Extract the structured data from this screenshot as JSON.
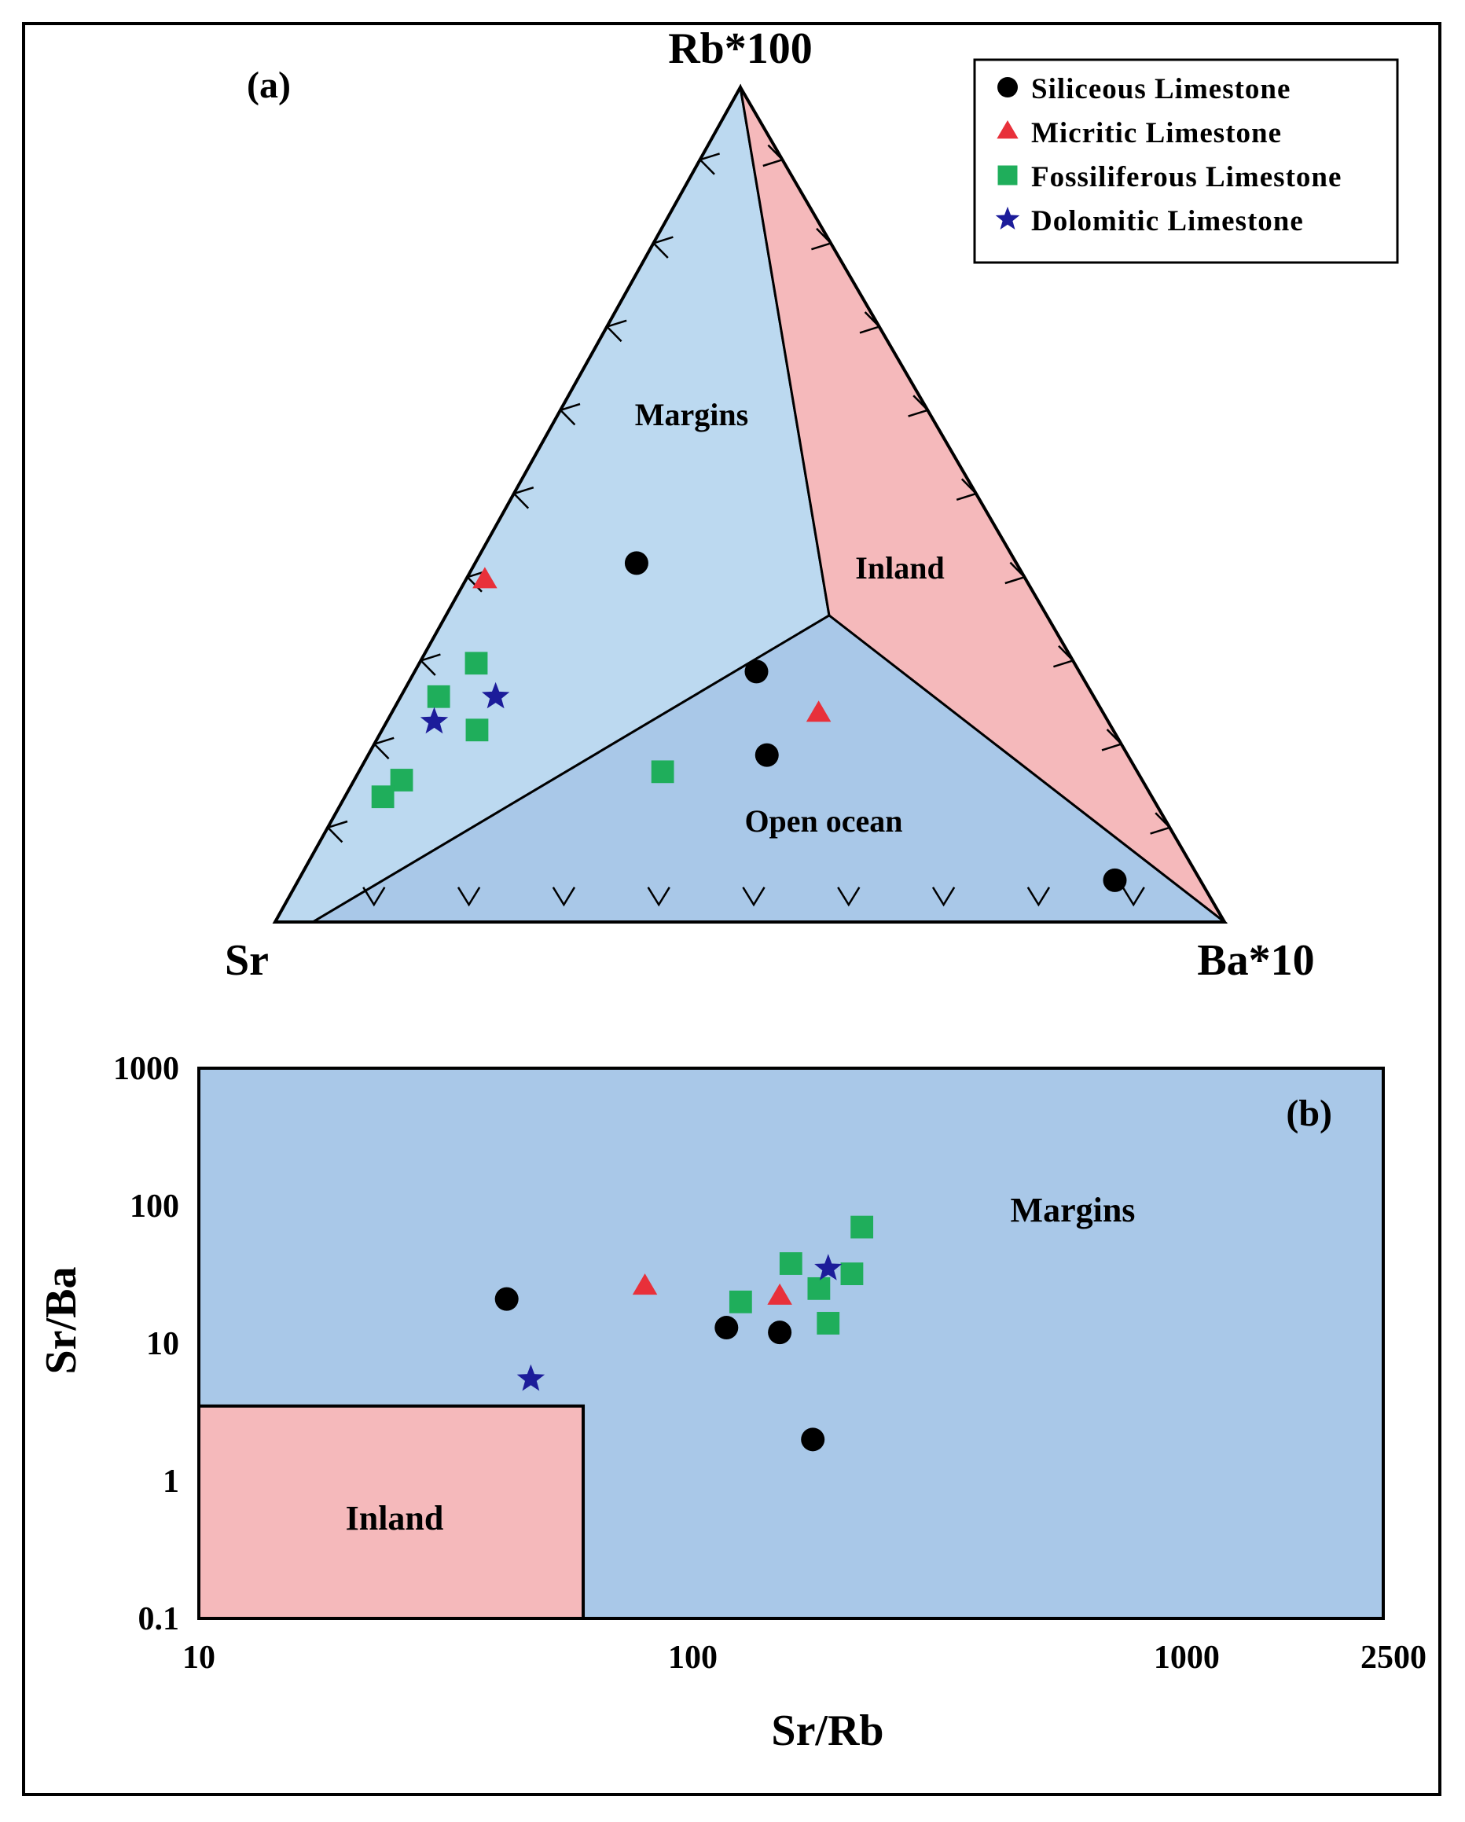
{
  "colors": {
    "margins_fill_a": "#bcd9f0",
    "open_ocean_fill": "#a9c8e8",
    "inland_fill": "#f5b9bb",
    "margins_fill_b": "#a9c8e8",
    "siliceous": "#000000",
    "micritic": "#e8303a",
    "fossiliferous": "#1fae5b",
    "dolomitic": "#1c1c9a"
  },
  "legend": [
    {
      "key": "siliceous",
      "label": "Siliceous Limestone",
      "marker": "circle"
    },
    {
      "key": "micritic",
      "label": "Micritic Limestone",
      "marker": "triangle"
    },
    {
      "key": "fossiliferous",
      "label": "Fossiliferous Limestone",
      "marker": "square"
    },
    {
      "key": "dolomitic",
      "label": "Dolomitic Limestone",
      "marker": "star"
    }
  ],
  "chart_data": [
    {
      "type": "scatter",
      "subtype": "ternary",
      "panel_label": "(a)",
      "apex_labels": {
        "top": "Rb*100",
        "left": "Sr",
        "right": "Ba*10"
      },
      "fields": [
        {
          "name": "Margins"
        },
        {
          "name": "Inland"
        },
        {
          "name": "Open ocean"
        }
      ],
      "series": [
        {
          "key": "siliceous",
          "points": [
            {
              "sr": 0.4,
              "ba10": 0.17,
              "rb100": 0.43
            },
            {
              "sr": 0.34,
              "ba10": 0.36,
              "rb100": 0.3
            },
            {
              "sr": 0.38,
              "ba10": 0.42,
              "rb100": 0.2
            },
            {
              "sr": 0.09,
              "ba10": 0.86,
              "rb100": 0.05
            }
          ]
        },
        {
          "key": "micritic",
          "points": [
            {
              "sr": 0.57,
              "ba10": 0.02,
              "rb100": 0.41
            },
            {
              "sr": 0.3,
              "ba10": 0.45,
              "rb100": 0.25
            }
          ]
        },
        {
          "key": "fossiliferous",
          "points": [
            {
              "sr": 0.63,
              "ba10": 0.06,
              "rb100": 0.31
            },
            {
              "sr": 0.69,
              "ba10": 0.04,
              "rb100": 0.27
            },
            {
              "sr": 0.67,
              "ba10": 0.1,
              "rb100": 0.23
            },
            {
              "sr": 0.78,
              "ba10": 0.05,
              "rb100": 0.17
            },
            {
              "sr": 0.81,
              "ba10": 0.04,
              "rb100": 0.15
            },
            {
              "sr": 0.5,
              "ba10": 0.32,
              "rb100": 0.18
            }
          ]
        },
        {
          "key": "dolomitic",
          "points": [
            {
              "sr": 0.63,
              "ba10": 0.1,
              "rb100": 0.27
            },
            {
              "sr": 0.71,
              "ba10": 0.05,
              "rb100": 0.24
            }
          ]
        }
      ]
    },
    {
      "type": "scatter",
      "panel_label": "(b)",
      "xlabel": "Sr/Rb",
      "ylabel": "Sr/Ba",
      "xscale": "log",
      "yscale": "log",
      "xlim": [
        10,
        2500
      ],
      "ylim": [
        0.1,
        1000
      ],
      "xticks": [
        {
          "v": 10,
          "t": "10"
        },
        {
          "v": 100,
          "t": "100"
        },
        {
          "v": 1000,
          "t": "1000"
        },
        {
          "v": 2500,
          "t": "2500"
        }
      ],
      "yticks": [
        {
          "v": 0.1,
          "t": "0.1"
        },
        {
          "v": 1,
          "t": "1"
        },
        {
          "v": 10,
          "t": "10"
        },
        {
          "v": 100,
          "t": "100"
        },
        {
          "v": 1000,
          "t": "1000"
        }
      ],
      "fields": [
        {
          "name": "Margins"
        },
        {
          "name": "Inland",
          "x_range": [
            10,
            60
          ],
          "y_range": [
            0.1,
            3.5
          ]
        }
      ],
      "series": [
        {
          "key": "siliceous",
          "points": [
            [
              42,
              21
            ],
            [
              117,
              13
            ],
            [
              150,
              12
            ],
            [
              175,
              2
            ]
          ]
        },
        {
          "key": "micritic",
          "points": [
            [
              80,
              26
            ],
            [
              150,
              22
            ]
          ]
        },
        {
          "key": "fossiliferous",
          "points": [
            [
              125,
              20
            ],
            [
              158,
              38
            ],
            [
              180,
              25
            ],
            [
              188,
              14
            ],
            [
              210,
              32
            ],
            [
              220,
              70
            ]
          ]
        },
        {
          "key": "dolomitic",
          "points": [
            [
              47,
              5.5
            ],
            [
              188,
              35
            ]
          ]
        }
      ]
    }
  ]
}
